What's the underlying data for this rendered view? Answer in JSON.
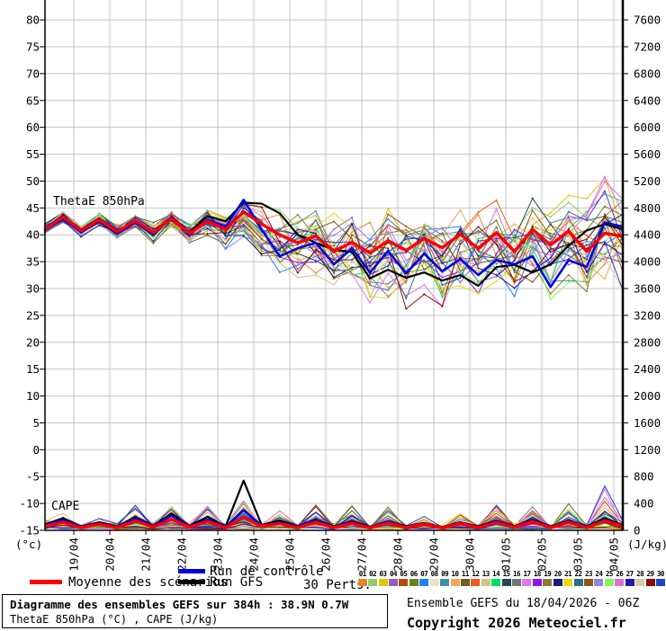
{
  "colors": {
    "background": "#FFFFFF",
    "grid": "#C4C4C4",
    "axis": "#000000",
    "mean": "#FF0000",
    "control": "#0000E0",
    "gfs": "#000000",
    "pert_colors": [
      "#E8882D",
      "#8FCB70",
      "#E3C400",
      "#8E62BC",
      "#B44A12",
      "#688414",
      "#1D83F0",
      "#EDE3C3",
      "#3E8FB0",
      "#ECA85C",
      "#6B5E1F",
      "#F05A1E",
      "#CFC382",
      "#00E05A",
      "#29454F",
      "#6E7678",
      "#E872E8",
      "#8A17F0",
      "#8C7A33",
      "#1C1C78",
      "#EDD812",
      "#2D6E8C",
      "#8C5A17",
      "#8F83E8",
      "#8CF55C",
      "#DB70CC",
      "#2017B0",
      "#DBC9A3",
      "#8C0A0A",
      "#1E46C8"
    ]
  },
  "legend": {
    "mean_label": "Moyenne des scénarios",
    "control_label": "Run de contrôle",
    "gfs_label": "Run GFS",
    "perts_label": "30 Perts.",
    "pert_numbers": [
      "01",
      "02",
      "03",
      "04",
      "05",
      "06",
      "07",
      "08",
      "09",
      "10",
      "11",
      "12",
      "13",
      "14",
      "15",
      "16",
      "17",
      "18",
      "19",
      "20",
      "21",
      "22",
      "23",
      "24",
      "25",
      "26",
      "27",
      "28",
      "29",
      "30"
    ]
  },
  "footer": {
    "box_line1": "Diagramme des ensembles GEFS sur 384h : 38.9N 0.7W",
    "box_line2": "ThetaE 850hPa (°C) , CAPE (J/kg)",
    "run_info": "Ensemble GEFS du 18/04/2026 - 06Z",
    "copyright": "Copyright 2026 Meteociel.fr"
  },
  "chart_data": {
    "type": "line",
    "title": "Diagramme des ensembles GEFS sur 384h : 38.9N 0.7W",
    "thetae_annotation": "ThetaE 850hPa",
    "cape_annotation": "CAPE",
    "x_start": "18/04 06Z",
    "x_total_hours": 384,
    "x_step_hours": 12,
    "x_tick_labels": [
      "19/04",
      "20/04",
      "21/04",
      "22/04",
      "23/04",
      "24/04",
      "25/04",
      "26/04",
      "27/04",
      "28/04",
      "29/04",
      "30/04",
      "01/05",
      "02/05",
      "03/05",
      "04/05"
    ],
    "left_axis": {
      "unit": "(°c)",
      "range": [
        -15,
        80
      ],
      "step": 5,
      "ticks": [
        80,
        75,
        70,
        65,
        60,
        55,
        50,
        45,
        40,
        35,
        30,
        25,
        20,
        15,
        10,
        5,
        0,
        -5,
        -10,
        -15
      ]
    },
    "right_axis": {
      "unit": "(J/kg)",
      "range": [
        0,
        7600
      ],
      "step": 400,
      "ticks": [
        7600,
        7200,
        6800,
        6400,
        6000,
        5600,
        5200,
        4800,
        4400,
        4000,
        3600,
        3200,
        2800,
        2400,
        2000,
        1600,
        1200,
        800,
        400,
        0
      ]
    },
    "grid": true,
    "legend_position": "bottom",
    "series": {
      "mean": {
        "name": "Moyenne des scénarios",
        "thetae": [
          41.0,
          43.3,
          40.8,
          42.8,
          40.6,
          42.6,
          40.4,
          43.0,
          40.3,
          42.5,
          41.0,
          44.3,
          42.0,
          40.0,
          38.5,
          39.8,
          36.9,
          38.6,
          36.6,
          38.9,
          37.1,
          39.3,
          37.6,
          40.1,
          37.4,
          40.4,
          36.9,
          41.0,
          38.1,
          40.7,
          36.9,
          40.3,
          39.7
        ],
        "cape": [
          60,
          120,
          40,
          90,
          40,
          140,
          50,
          160,
          50,
          130,
          40,
          190,
          60,
          100,
          40,
          120,
          40,
          100,
          35,
          110,
          40,
          90,
          35,
          100,
          40,
          120,
          45,
          130,
          40,
          120,
          40,
          140,
          60
        ]
      },
      "control": {
        "name": "Run de contrôle",
        "thetae": [
          40.8,
          43.0,
          40.5,
          42.5,
          40.2,
          42.3,
          40.0,
          43.2,
          40.0,
          42.8,
          41.5,
          46.5,
          41.0,
          36.0,
          37.5,
          38.5,
          34.5,
          37.5,
          33.0,
          37.0,
          32.8,
          36.5,
          33.2,
          35.5,
          32.5,
          35.3,
          34.5,
          36.0,
          30.3,
          35.3,
          34.0,
          42.3,
          41.5
        ],
        "cape": [
          80,
          150,
          50,
          100,
          50,
          180,
          60,
          220,
          60,
          160,
          50,
          300,
          70,
          120,
          50,
          140,
          50,
          120,
          40,
          130,
          50,
          100,
          40,
          110,
          50,
          140,
          50,
          150,
          50,
          130,
          50,
          160,
          70
        ]
      },
      "gfs": {
        "name": "Run GFS",
        "thetae": [
          41.2,
          43.5,
          41.0,
          43.0,
          40.8,
          42.5,
          40.5,
          43.3,
          40.5,
          43.5,
          42.5,
          46.0,
          45.8,
          44.0,
          40.0,
          38.5,
          37.2,
          36.8,
          31.9,
          33.5,
          32.0,
          33.0,
          31.5,
          32.5,
          30.5,
          34.0,
          34.4,
          33.0,
          34.5,
          38.0,
          40.8,
          42.0,
          41.0
        ],
        "cape": [
          90,
          180,
          60,
          120,
          60,
          200,
          70,
          250,
          70,
          200,
          60,
          740,
          80,
          150,
          60,
          160,
          60,
          130,
          50,
          140,
          60,
          110,
          50,
          120,
          60,
          150,
          60,
          160,
          60,
          140,
          60,
          180,
          80
        ]
      }
    },
    "ensemble": {
      "n_members": 30,
      "thetae_envelope_min": [
        40.0,
        42.0,
        39.0,
        41.0,
        38.5,
        40.5,
        38.0,
        40.5,
        37.5,
        39.5,
        37.0,
        39.0,
        34.0,
        31.0,
        30.0,
        31.0,
        28.0,
        29.0,
        21.0,
        26.0,
        22.0,
        27.0,
        25.0,
        28.0,
        26.0,
        29.0,
        27.0,
        30.0,
        27.0,
        30.0,
        26.0,
        30.0,
        28.0
      ],
      "thetae_envelope_max": [
        42.5,
        44.8,
        42.0,
        44.5,
        42.5,
        44.0,
        42.5,
        45.0,
        42.5,
        45.5,
        44.5,
        47.5,
        46.5,
        45.5,
        45.0,
        46.0,
        45.5,
        46.0,
        46.5,
        47.0,
        46.0,
        46.5,
        45.5,
        47.0,
        46.0,
        47.5,
        46.0,
        48.0,
        46.5,
        49.0,
        47.5,
        51.5,
        49.5
      ],
      "cape_envelope_max": [
        150,
        280,
        80,
        230,
        90,
        380,
        100,
        560,
        110,
        520,
        100,
        760,
        120,
        420,
        90,
        450,
        80,
        590,
        70,
        420,
        80,
        260,
        70,
        360,
        80,
        450,
        90,
        520,
        80,
        460,
        90,
        700,
        150
      ]
    }
  }
}
